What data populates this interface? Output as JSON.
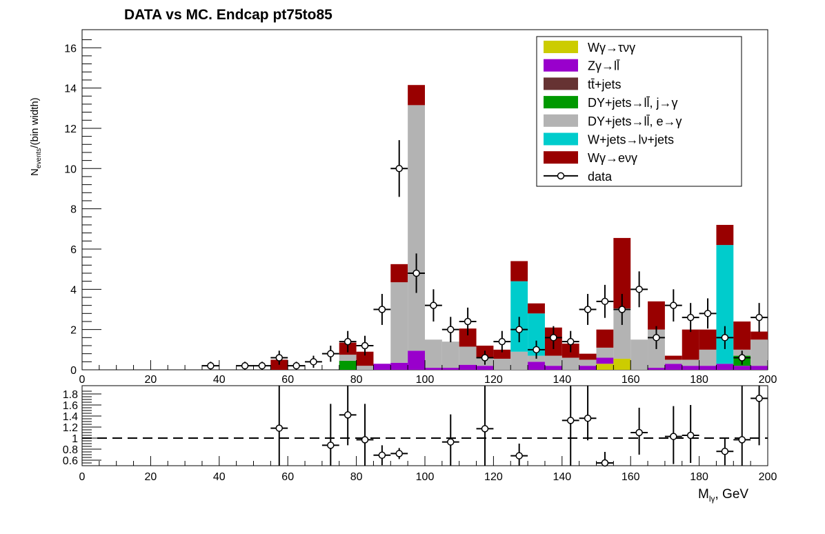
{
  "chart_data": {
    "type": "bar",
    "stacked": true,
    "title": "DATA vs MC. Endcap  pt75to85",
    "xlabel": "M_lγ, GeV",
    "ylabel": "N_events/(bin width)",
    "xlim": [
      0,
      200
    ],
    "ylim": [
      0,
      16.9
    ],
    "ratio_ylim": [
      0.5,
      1.95
    ],
    "bin_width": 5,
    "x_ticks": [
      "0",
      "20",
      "40",
      "60",
      "80",
      "100",
      "120",
      "140",
      "160",
      "180",
      "200"
    ],
    "y_ticks": [
      "0",
      "2",
      "4",
      "6",
      "8",
      "10",
      "12",
      "14",
      "16"
    ],
    "ratio_ticks": [
      "0.6",
      "0.8",
      "1",
      "1.2",
      "1.4",
      "1.6",
      "1.8"
    ],
    "legend_position": "top-right",
    "bins": [
      0,
      5,
      10,
      15,
      20,
      25,
      30,
      35,
      40,
      45,
      50,
      55,
      60,
      65,
      70,
      75,
      80,
      85,
      90,
      95,
      100,
      105,
      110,
      115,
      120,
      125,
      130,
      135,
      140,
      145,
      150,
      155,
      160,
      165,
      170,
      175,
      180,
      185,
      190,
      195
    ],
    "series": [
      {
        "name": "Wγ→eνγ",
        "color": "#990000",
        "values": [
          0,
          0,
          0,
          0,
          0,
          0,
          0,
          0,
          0,
          0,
          0,
          0.5,
          0,
          0,
          0,
          0.6,
          0.7,
          0,
          0.9,
          1.0,
          0,
          0,
          0.9,
          0.6,
          0.45,
          1.0,
          0.5,
          1.4,
          0.7,
          0.3,
          0.9,
          3.5,
          0,
          1.4,
          0.2,
          1.5,
          1.0,
          1.0,
          1.4,
          0.4
        ]
      },
      {
        "name": "W+jets→lν+jets",
        "color": "#00cccc",
        "values": [
          0,
          0,
          0,
          0,
          0,
          0,
          0,
          0,
          0,
          0,
          0,
          0,
          0,
          0,
          0,
          0,
          0,
          0,
          0,
          0,
          0,
          0,
          0,
          0,
          0,
          3.5,
          2.1,
          0,
          0,
          0,
          0,
          0,
          0,
          0,
          0,
          0,
          0,
          5.9,
          0,
          0
        ]
      },
      {
        "name": "DY+jets→ll̄, e→γ",
        "color": "#b3b3b3",
        "values": [
          0,
          0,
          0,
          0,
          0,
          0,
          0,
          0,
          0,
          0,
          0,
          0,
          0,
          0,
          0,
          0.3,
          0.2,
          0,
          4.0,
          12.2,
          1.4,
          1.3,
          0.9,
          0.4,
          0.55,
          0.9,
          0.3,
          0.5,
          0.6,
          0.3,
          0.5,
          2.5,
          1.5,
          1.9,
          0.2,
          0.3,
          0.8,
          0,
          0.3,
          1.3
        ]
      },
      {
        "name": "DY+jets→ll̄, j→γ",
        "color": "#009900",
        "values": [
          0,
          0,
          0,
          0,
          0,
          0,
          0,
          0,
          0,
          0,
          0,
          0,
          0,
          0,
          0,
          0.45,
          0,
          0,
          0,
          0,
          0,
          0,
          0,
          0,
          0,
          0,
          0,
          0,
          0,
          0,
          0,
          0,
          0,
          0,
          0,
          0,
          0,
          0,
          0.5,
          0
        ]
      },
      {
        "name": "tt̄+jets",
        "color": "#663333",
        "values": [
          0,
          0,
          0,
          0,
          0,
          0,
          0,
          0,
          0,
          0,
          0,
          0,
          0,
          0,
          0,
          0,
          0,
          0,
          0,
          0,
          0,
          0,
          0,
          0,
          0,
          0,
          0,
          0,
          0,
          0,
          0,
          0,
          0,
          0,
          0,
          0,
          0,
          0,
          0,
          0
        ]
      },
      {
        "name": "Zγ→ll̄",
        "color": "#9900cc",
        "values": [
          0,
          0,
          0,
          0,
          0,
          0,
          0,
          0,
          0,
          0,
          0,
          0,
          0,
          0,
          0,
          0,
          0,
          0.3,
          0.35,
          0.95,
          0.1,
          0.1,
          0.25,
          0.2,
          0,
          0,
          0.4,
          0.2,
          0,
          0.2,
          0.3,
          0,
          0,
          0.1,
          0.3,
          0.2,
          0.2,
          0.3,
          0.2,
          0.2
        ]
      },
      {
        "name": "Wγ→τνγ",
        "color": "#cccc00",
        "values": [
          0,
          0,
          0,
          0,
          0,
          0,
          0,
          0,
          0,
          0,
          0,
          0,
          0,
          0,
          0,
          0,
          0,
          0,
          0,
          0,
          0,
          0,
          0,
          0,
          0,
          0,
          0,
          0,
          0,
          0,
          0.3,
          0.55,
          0,
          0,
          0,
          0,
          0,
          0,
          0,
          0
        ]
      },
      {
        "name": "data",
        "color": "#000000",
        "marker": "open-circle",
        "points": [
          {
            "x": 37.5,
            "y": 0.2,
            "err": 0.2
          },
          {
            "x": 47.5,
            "y": 0.2,
            "err": 0.2
          },
          {
            "x": 52.5,
            "y": 0.2,
            "err": 0.2
          },
          {
            "x": 57.5,
            "y": 0.6,
            "err": 0.35
          },
          {
            "x": 62.5,
            "y": 0.2,
            "err": 0.2
          },
          {
            "x": 67.5,
            "y": 0.4,
            "err": 0.3
          },
          {
            "x": 72.5,
            "y": 0.8,
            "err": 0.4
          },
          {
            "x": 77.5,
            "y": 1.4,
            "err": 0.53
          },
          {
            "x": 82.5,
            "y": 1.2,
            "err": 0.49
          },
          {
            "x": 87.5,
            "y": 3.0,
            "err": 0.77
          },
          {
            "x": 92.5,
            "y": 10.0,
            "err": 1.41
          },
          {
            "x": 97.5,
            "y": 4.8,
            "err": 0.98
          },
          {
            "x": 102.5,
            "y": 3.2,
            "err": 0.8
          },
          {
            "x": 107.5,
            "y": 2.0,
            "err": 0.63
          },
          {
            "x": 112.5,
            "y": 2.4,
            "err": 0.69
          },
          {
            "x": 117.5,
            "y": 0.6,
            "err": 0.35
          },
          {
            "x": 122.5,
            "y": 1.4,
            "err": 0.53
          },
          {
            "x": 127.5,
            "y": 2.0,
            "err": 0.63
          },
          {
            "x": 132.5,
            "y": 1.0,
            "err": 0.45
          },
          {
            "x": 137.5,
            "y": 1.6,
            "err": 0.57
          },
          {
            "x": 142.5,
            "y": 1.4,
            "err": 0.53
          },
          {
            "x": 147.5,
            "y": 3.0,
            "err": 0.77
          },
          {
            "x": 152.5,
            "y": 3.4,
            "err": 0.82
          },
          {
            "x": 157.5,
            "y": 3.0,
            "err": 0.77
          },
          {
            "x": 162.5,
            "y": 4.0,
            "err": 0.89
          },
          {
            "x": 167.5,
            "y": 1.6,
            "err": 0.57
          },
          {
            "x": 172.5,
            "y": 3.2,
            "err": 0.8
          },
          {
            "x": 177.5,
            "y": 2.6,
            "err": 0.72
          },
          {
            "x": 182.5,
            "y": 2.8,
            "err": 0.75
          },
          {
            "x": 187.5,
            "y": 1.6,
            "err": 0.57
          },
          {
            "x": 192.5,
            "y": 0.6,
            "err": 0.35
          },
          {
            "x": 197.5,
            "y": 2.6,
            "err": 0.72
          }
        ]
      }
    ],
    "ratio": {
      "reference_line": 1,
      "points": [
        {
          "x": 57.5,
          "y": 1.18,
          "err_up": 0.9,
          "err_down": 0.7
        },
        {
          "x": 72.5,
          "y": 0.87,
          "err_up": 0.75,
          "err_down": 0.45
        },
        {
          "x": 77.5,
          "y": 1.42,
          "err_up": 0.55,
          "err_down": 0.55
        },
        {
          "x": 82.5,
          "y": 0.97,
          "err_up": 0.65,
          "err_down": 0.5
        },
        {
          "x": 87.5,
          "y": 0.69,
          "err_up": 0.18,
          "err_down": 0.18
        },
        {
          "x": 92.5,
          "y": 0.72,
          "err_up": 0.1,
          "err_down": 0.1
        },
        {
          "x": 107.5,
          "y": 0.93,
          "err_up": 0.5,
          "err_down": 0.45
        },
        {
          "x": 117.5,
          "y": 1.17,
          "err_up": 0.85,
          "err_down": 0.7
        },
        {
          "x": 127.5,
          "y": 0.68,
          "err_up": 0.22,
          "err_down": 0.22
        },
        {
          "x": 142.5,
          "y": 1.32,
          "err_up": 0.65,
          "err_down": 0.85
        },
        {
          "x": 147.5,
          "y": 1.36,
          "err_up": 0.6,
          "err_down": 0.4
        },
        {
          "x": 152.5,
          "y": 0.55,
          "err_up": 0.2,
          "err_down": 0.1
        },
        {
          "x": 162.5,
          "y": 1.1,
          "err_up": 0.45,
          "err_down": 0.4
        },
        {
          "x": 172.5,
          "y": 1.03,
          "err_up": 0.55,
          "err_down": 0.5
        },
        {
          "x": 177.5,
          "y": 1.05,
          "err_up": 0.55,
          "err_down": 0.5
        },
        {
          "x": 187.5,
          "y": 0.76,
          "err_up": 0.25,
          "err_down": 0.25
        },
        {
          "x": 192.5,
          "y": 0.97,
          "err_up": 1.0,
          "err_down": 0.5
        },
        {
          "x": 197.5,
          "y": 1.72,
          "err_up": 0.4,
          "err_down": 0.85
        }
      ]
    }
  }
}
